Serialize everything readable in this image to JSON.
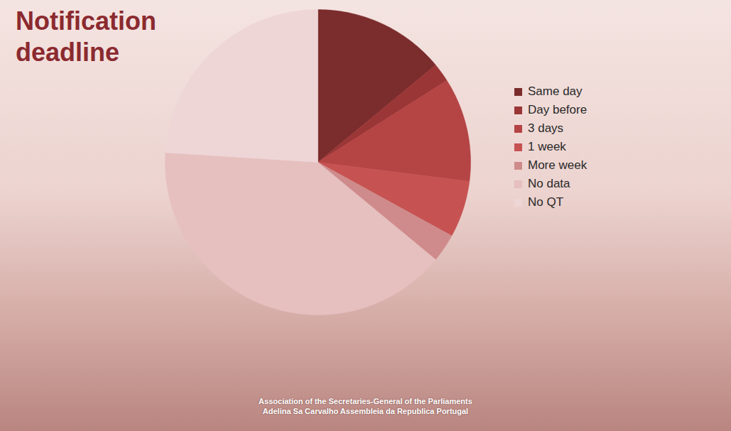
{
  "chart_data": {
    "type": "pie",
    "title": "Notification deadline",
    "categories": [
      "Same day",
      "Day before",
      "3 days",
      "1 week",
      "More week",
      "No data",
      "No QT"
    ],
    "values": [
      14,
      2,
      11,
      6,
      3,
      40,
      24
    ],
    "colors": [
      "#7b2c2c",
      "#9a3636",
      "#b54444",
      "#c65252",
      "#cf8b8b",
      "#e6bfbf",
      "#eed6d6"
    ],
    "legend": "right",
    "annotations": [
      "Association of the Secretaries-General of the Parliaments",
      "Adelina Sa Carvalho  Assembleia da Republica Portugal"
    ]
  }
}
